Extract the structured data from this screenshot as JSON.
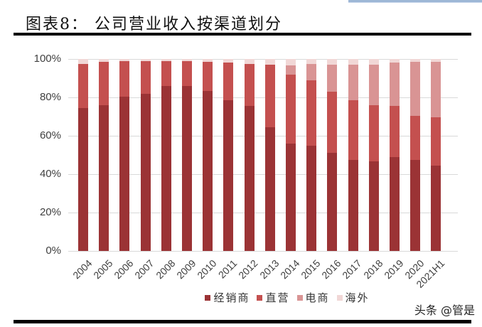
{
  "header": {
    "title": "图表8：  公司营业收入按渠道划分"
  },
  "watermark": "头条 @管是",
  "chart_data": {
    "type": "bar",
    "stacked": true,
    "percent_stacked": true,
    "title": "图表8：公司营业收入按渠道划分",
    "xlabel": "",
    "ylabel": "",
    "ylim": [
      0,
      100
    ],
    "yticks": [
      "0%",
      "20%",
      "40%",
      "60%",
      "80%",
      "100%"
    ],
    "grid": true,
    "legend_position": "bottom",
    "categories": [
      "2004",
      "2005",
      "2006",
      "2007",
      "2008",
      "2009",
      "2010",
      "2011",
      "2012",
      "2013",
      "2014",
      "2015",
      "2016",
      "2017",
      "2018",
      "2019",
      "2020",
      "2021H1"
    ],
    "series": [
      {
        "name": "经销商",
        "color": "#9b3335",
        "values": [
          74.5,
          76,
          80.5,
          82,
          86,
          86,
          83.5,
          78.5,
          75.5,
          64.5,
          56,
          55,
          51,
          47.5,
          46.5,
          49,
          47.5,
          44.5
        ]
      },
      {
        "name": "直营",
        "color": "#c4504f",
        "values": [
          23,
          22.5,
          18.5,
          17,
          13,
          13,
          15,
          19.5,
          22,
          32.5,
          36,
          34,
          32,
          31,
          29.5,
          26.5,
          23,
          25
        ]
      },
      {
        "name": "电商",
        "color": "#d99494",
        "values": [
          0,
          0,
          0,
          0,
          0,
          0,
          0,
          0,
          0,
          0,
          4.5,
          8.5,
          14,
          18.5,
          21,
          22.5,
          28,
          29
        ]
      },
      {
        "name": "海外",
        "color": "#f1d7d6",
        "values": [
          2.5,
          1.5,
          1,
          1,
          1,
          1,
          1.5,
          2,
          2.5,
          3,
          3.5,
          2.5,
          3,
          3,
          3,
          2,
          1.5,
          1.5
        ]
      }
    ]
  }
}
